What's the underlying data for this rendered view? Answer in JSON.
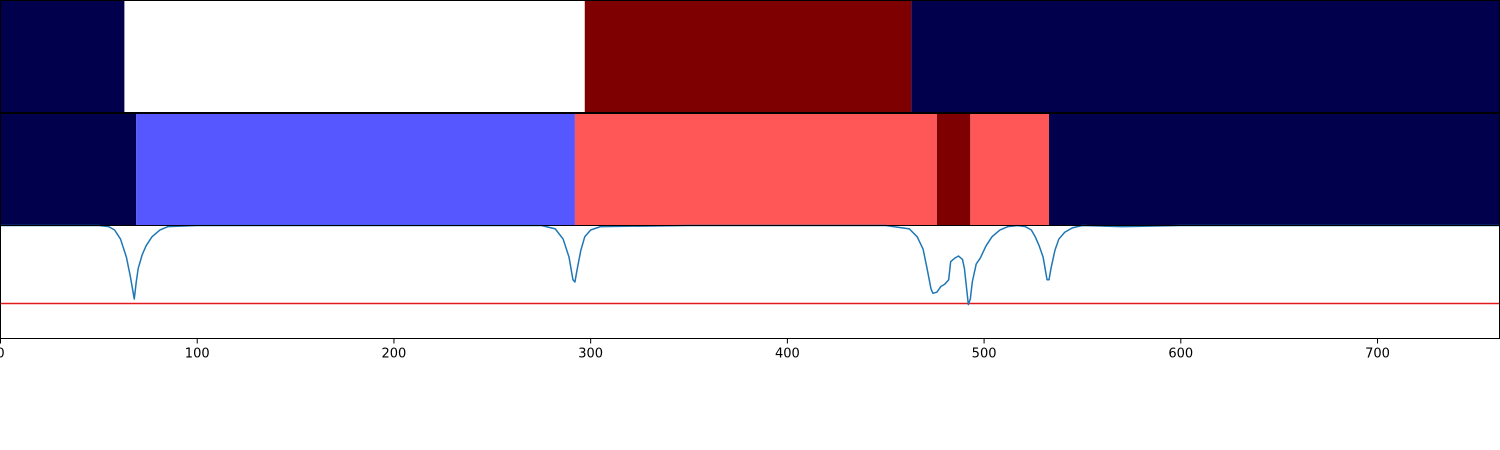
{
  "chart_data": [
    {
      "type": "heatmap",
      "panel": "top",
      "segments": [
        {
          "start": 0,
          "end": 63,
          "color": "#00004c"
        },
        {
          "start": 63,
          "end": 297,
          "color": "#ffffff"
        },
        {
          "start": 297,
          "end": 463,
          "color": "#7f0000"
        },
        {
          "start": 463,
          "end": 762,
          "color": "#00004c"
        }
      ]
    },
    {
      "type": "heatmap",
      "panel": "middle",
      "segments": [
        {
          "start": 0,
          "end": 69,
          "color": "#00004c"
        },
        {
          "start": 69,
          "end": 292,
          "color": "#5757ff"
        },
        {
          "start": 292,
          "end": 476,
          "color": "#ff5757"
        },
        {
          "start": 476,
          "end": 493,
          "color": "#7f0000"
        },
        {
          "start": 493,
          "end": 533,
          "color": "#ff5757"
        },
        {
          "start": 533,
          "end": 762,
          "color": "#00004c"
        }
      ]
    },
    {
      "type": "line",
      "panel": "bottom",
      "xlim": [
        0,
        762
      ],
      "ylim": [
        0,
        1
      ],
      "threshold": 0.31,
      "threshold_color": "#e31a1c",
      "line_color": "#1f77b4",
      "x": [
        0,
        50,
        55,
        58,
        61,
        64,
        66,
        68,
        69,
        70,
        72,
        74,
        77,
        81,
        85,
        100,
        200,
        275,
        282,
        286,
        289,
        291,
        292,
        293,
        295,
        297,
        300,
        305,
        350,
        450,
        462,
        466,
        469,
        471,
        473,
        474,
        476,
        478,
        480,
        482,
        483,
        485,
        487,
        489,
        490,
        491,
        492,
        493,
        494,
        496,
        498,
        501,
        504,
        508,
        512,
        517,
        521,
        524,
        526,
        528,
        530,
        531,
        532,
        533,
        534,
        536,
        538,
        541,
        545,
        550,
        570,
        600,
        762
      ],
      "values": [
        1.0,
        1.0,
        0.99,
        0.96,
        0.88,
        0.72,
        0.55,
        0.35,
        0.5,
        0.62,
        0.74,
        0.82,
        0.9,
        0.96,
        0.99,
        1.0,
        1.0,
        1.0,
        0.97,
        0.88,
        0.72,
        0.52,
        0.5,
        0.6,
        0.78,
        0.9,
        0.96,
        0.99,
        1.0,
        1.0,
        0.97,
        0.9,
        0.79,
        0.62,
        0.44,
        0.4,
        0.41,
        0.46,
        0.48,
        0.52,
        0.68,
        0.71,
        0.73,
        0.7,
        0.62,
        0.46,
        0.3,
        0.35,
        0.5,
        0.66,
        0.71,
        0.82,
        0.9,
        0.96,
        0.99,
        1.0,
        0.99,
        0.96,
        0.9,
        0.82,
        0.72,
        0.62,
        0.52,
        0.52,
        0.62,
        0.78,
        0.88,
        0.94,
        0.98,
        1.0,
        0.99,
        1.0,
        1.0
      ]
    }
  ],
  "axis": {
    "xlim": [
      0,
      762
    ],
    "ticks": [
      0,
      100,
      200,
      300,
      400,
      500,
      600,
      700
    ],
    "tick_labels": [
      "0",
      "100",
      "200",
      "300",
      "400",
      "500",
      "600",
      "700"
    ]
  }
}
